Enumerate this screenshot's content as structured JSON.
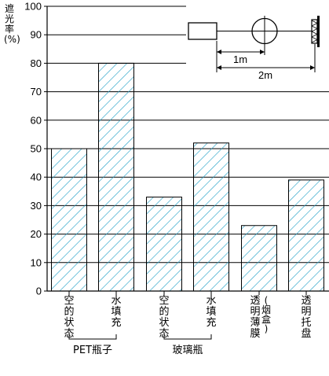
{
  "chart_data": {
    "type": "bar",
    "ylabel": "遮光率(%)",
    "ylim": [
      0,
      100
    ],
    "yticks": [
      0,
      10,
      20,
      30,
      40,
      50,
      60,
      70,
      80,
      90,
      100
    ],
    "grid": true,
    "bar_pattern": "diagonal-hatch",
    "categories": [
      "空的状态",
      "水填充",
      "空的状态",
      "水填充",
      "透明薄膜(烟盒)",
      "透明托盘"
    ],
    "values": [
      50,
      80,
      33,
      52,
      23,
      39
    ],
    "groups": [
      {
        "label": "PET瓶子",
        "categories": [
          0,
          1
        ]
      },
      {
        "label": "玻璃瓶",
        "categories": [
          2,
          3
        ]
      }
    ],
    "inset": {
      "dim1": "1m",
      "dim2": "2m"
    }
  }
}
